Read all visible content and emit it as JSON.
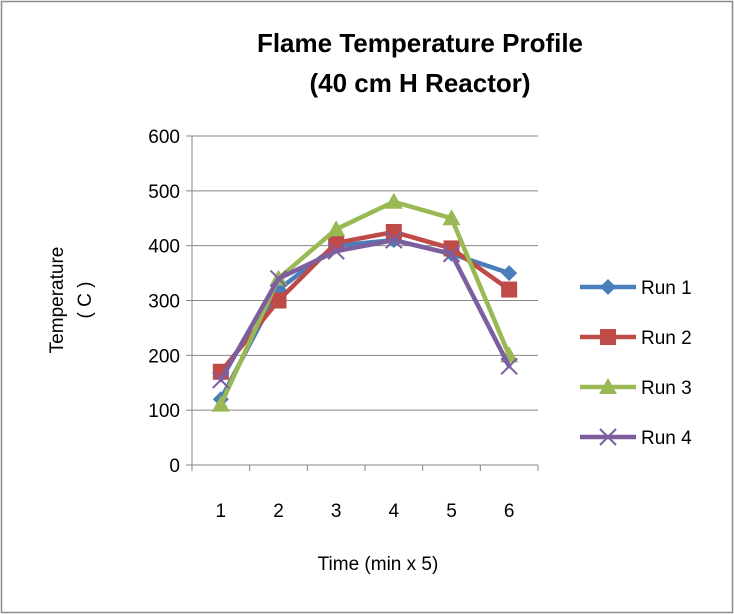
{
  "chart_data": {
    "type": "line",
    "title": "Flame Temperature Profile",
    "subtitle": "(40 cm H Reactor)",
    "xlabel": "Time (min x 5)",
    "ylabel": "Temperature",
    "ylabel_unit": "( C )",
    "categories": [
      "1",
      "2",
      "3",
      "4",
      "5",
      "6"
    ],
    "ylim": [
      0,
      600
    ],
    "yticks": [
      0,
      100,
      200,
      300,
      400,
      500,
      600
    ],
    "grid": "horizontal",
    "legend_position": "right",
    "series": [
      {
        "name": "Run 1",
        "color": "#4A7EBB",
        "marker": "diamond",
        "values": [
          120,
          320,
          400,
          410,
          385,
          350
        ]
      },
      {
        "name": "Run 2",
        "color": "#BE4B48",
        "marker": "square",
        "values": [
          170,
          300,
          405,
          425,
          395,
          320
        ]
      },
      {
        "name": "Run 3",
        "color": "#98B954",
        "marker": "triangle",
        "values": [
          110,
          340,
          430,
          480,
          450,
          200
        ]
      },
      {
        "name": "Run 4",
        "color": "#7D5FA0",
        "marker": "x",
        "values": [
          155,
          340,
          390,
          410,
          385,
          180
        ]
      }
    ]
  }
}
